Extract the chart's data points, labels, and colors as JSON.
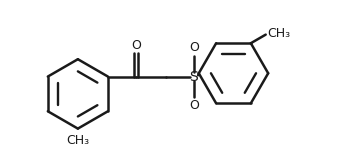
{
  "background_color": "#ffffff",
  "line_color": "#1a1a1a",
  "line_width": 1.8,
  "fig_width": 3.54,
  "fig_height": 1.68,
  "dpi": 100,
  "atoms": {
    "S_label": "S",
    "O_top_label": "O",
    "O_bottom_label": "O",
    "carbonyl_O_label": "O",
    "CH3_left_label": "CH₃",
    "CH3_right_label": "CH₃"
  },
  "font_size_atoms": 9,
  "font_size_small": 7.5
}
